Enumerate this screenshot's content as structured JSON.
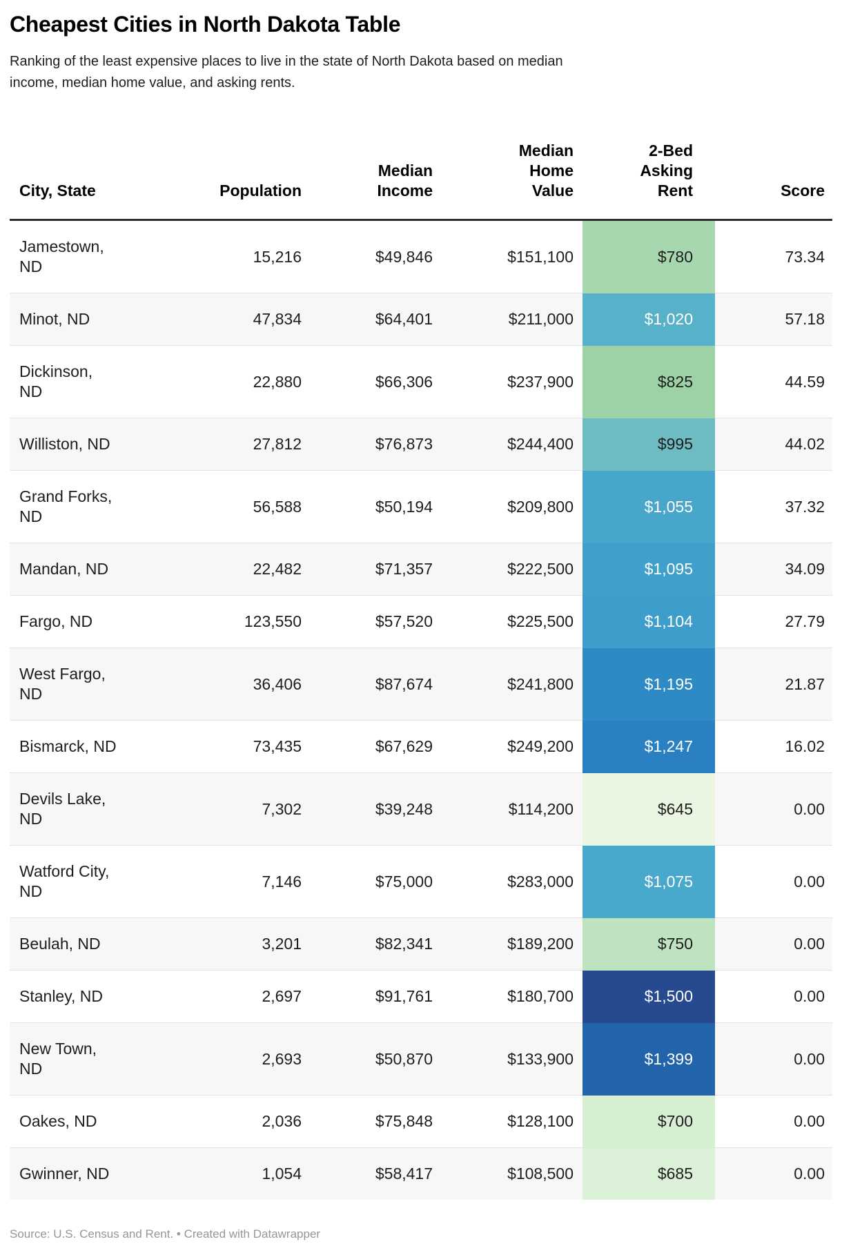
{
  "header": {
    "title": "Cheapest Cities in North Dakota Table",
    "subtitle": "Ranking of the least expensive places to live in the state of North Dakota based on median\nincome, median home value, and asking rents."
  },
  "footer": {
    "text": "Source: U.S. Census and Rent. • Created with Datawrapper"
  },
  "chart_data": {
    "type": "table",
    "title": "Cheapest Cities in North Dakota Table",
    "legend_position": "none",
    "grid": "row-stripes",
    "rent_color_scale": {
      "low_green": "#eaf5e2",
      "mid_teal": "#57b1c9",
      "high_navy": "#27498f"
    },
    "columns": [
      {
        "key": "city",
        "label": "City, State",
        "align": "left"
      },
      {
        "key": "population",
        "label": "Population",
        "align": "right"
      },
      {
        "key": "income",
        "label": "Median\nIncome",
        "align": "right"
      },
      {
        "key": "home",
        "label": "Median\nHome\nValue",
        "align": "right"
      },
      {
        "key": "rent",
        "label": "2-Bed\nAsking\nRent",
        "align": "right"
      },
      {
        "key": "score",
        "label": "Score",
        "align": "right"
      }
    ],
    "rows": [
      {
        "city": "Jamestown, ND",
        "city_display": "Jamestown,\nND",
        "population": 15216,
        "population_display": "15,216",
        "median_income": 49846,
        "income_display": "$49,846",
        "median_home_value": 151100,
        "home_display": "$151,100",
        "rent": 780,
        "rent_display": "$780",
        "score": 73.34,
        "score_display": "73.34",
        "rent_bg": "#a7d7af",
        "rent_text": "#1d1d1d"
      },
      {
        "city": "Minot, ND",
        "city_display": "Minot, ND",
        "population": 47834,
        "population_display": "47,834",
        "median_income": 64401,
        "income_display": "$64,401",
        "median_home_value": 211000,
        "home_display": "$211,000",
        "rent": 1020,
        "rent_display": "$1,020",
        "score": 57.18,
        "score_display": "57.18",
        "rent_bg": "#57b1c9",
        "rent_text": "#ffffff"
      },
      {
        "city": "Dickinson, ND",
        "city_display": "Dickinson,\nND",
        "population": 22880,
        "population_display": "22,880",
        "median_income": 66306,
        "income_display": "$66,306",
        "median_home_value": 237900,
        "home_display": "$237,900",
        "rent": 825,
        "rent_display": "$825",
        "score": 44.59,
        "score_display": "44.59",
        "rent_bg": "#9cd2a6",
        "rent_text": "#1d1d1d"
      },
      {
        "city": "Williston, ND",
        "city_display": "Williston, ND",
        "population": 27812,
        "population_display": "27,812",
        "median_income": 76873,
        "income_display": "$76,873",
        "median_home_value": 244400,
        "home_display": "$244,400",
        "rent": 995,
        "rent_display": "$995",
        "score": 44.02,
        "score_display": "44.02",
        "rent_bg": "#6cbcc2",
        "rent_text": "#1d1d1d"
      },
      {
        "city": "Grand Forks, ND",
        "city_display": "Grand Forks,\nND",
        "population": 56588,
        "population_display": "56,588",
        "median_income": 50194,
        "income_display": "$50,194",
        "median_home_value": 209800,
        "home_display": "$209,800",
        "rent": 1055,
        "rent_display": "$1,055",
        "score": 37.32,
        "score_display": "37.32",
        "rent_bg": "#49a6cb",
        "rent_text": "#ffffff"
      },
      {
        "city": "Mandan, ND",
        "city_display": "Mandan, ND",
        "population": 22482,
        "population_display": "22,482",
        "median_income": 71357,
        "income_display": "$71,357",
        "median_home_value": 222500,
        "home_display": "$222,500",
        "rent": 1095,
        "rent_display": "$1,095",
        "score": 34.09,
        "score_display": "34.09",
        "rent_bg": "#40a0cc",
        "rent_text": "#ffffff"
      },
      {
        "city": "Fargo, ND",
        "city_display": "Fargo, ND",
        "population": 123550,
        "population_display": "123,550",
        "median_income": 57520,
        "income_display": "$57,520",
        "median_home_value": 225500,
        "home_display": "$225,500",
        "rent": 1104,
        "rent_display": "$1,104",
        "score": 27.79,
        "score_display": "27.79",
        "rent_bg": "#3e9ecb",
        "rent_text": "#ffffff"
      },
      {
        "city": "West Fargo, ND",
        "city_display": "West Fargo,\nND",
        "population": 36406,
        "population_display": "36,406",
        "median_income": 87674,
        "income_display": "$87,674",
        "median_home_value": 241800,
        "home_display": "$241,800",
        "rent": 1195,
        "rent_display": "$1,195",
        "score": 21.87,
        "score_display": "21.87",
        "rent_bg": "#2e8ac4",
        "rent_text": "#ffffff"
      },
      {
        "city": "Bismarck, ND",
        "city_display": "Bismarck, ND",
        "population": 73435,
        "population_display": "73,435",
        "median_income": 67629,
        "income_display": "$67,629",
        "median_home_value": 249200,
        "home_display": "$249,200",
        "rent": 1247,
        "rent_display": "$1,247",
        "score": 16.02,
        "score_display": "16.02",
        "rent_bg": "#2a80c0",
        "rent_text": "#ffffff"
      },
      {
        "city": "Devils Lake, ND",
        "city_display": "Devils Lake,\nND",
        "population": 7302,
        "population_display": "7,302",
        "median_income": 39248,
        "income_display": "$39,248",
        "median_home_value": 114200,
        "home_display": "$114,200",
        "rent": 645,
        "rent_display": "$645",
        "score": 0.0,
        "score_display": "0.00",
        "rent_bg": "#eaf5e2",
        "rent_text": "#1d1d1d"
      },
      {
        "city": "Watford City, ND",
        "city_display": "Watford City,\nND",
        "population": 7146,
        "population_display": "7,146",
        "median_income": 75000,
        "income_display": "$75,000",
        "median_home_value": 283000,
        "home_display": "$283,000",
        "rent": 1075,
        "rent_display": "$1,075",
        "score": 0.0,
        "score_display": "0.00",
        "rent_bg": "#48a9cc",
        "rent_text": "#ffffff"
      },
      {
        "city": "Beulah, ND",
        "city_display": "Beulah, ND",
        "population": 3201,
        "population_display": "3,201",
        "median_income": 82341,
        "income_display": "$82,341",
        "median_home_value": 189200,
        "home_display": "$189,200",
        "rent": 750,
        "rent_display": "$750",
        "score": 0.0,
        "score_display": "0.00",
        "rent_bg": "#bfe2c1",
        "rent_text": "#1d1d1d"
      },
      {
        "city": "Stanley, ND",
        "city_display": "Stanley, ND",
        "population": 2697,
        "population_display": "2,697",
        "median_income": 91761,
        "income_display": "$91,761",
        "median_home_value": 180700,
        "home_display": "$180,700",
        "rent": 1500,
        "rent_display": "$1,500",
        "score": 0.0,
        "score_display": "0.00",
        "rent_bg": "#27498f",
        "rent_text": "#ffffff"
      },
      {
        "city": "New Town, ND",
        "city_display": "New Town,\nND",
        "population": 2693,
        "population_display": "2,693",
        "median_income": 50870,
        "income_display": "$50,870",
        "median_home_value": 133900,
        "home_display": "$133,900",
        "rent": 1399,
        "rent_display": "$1,399",
        "score": 0.0,
        "score_display": "0.00",
        "rent_bg": "#2264aa",
        "rent_text": "#ffffff"
      },
      {
        "city": "Oakes, ND",
        "city_display": "Oakes, ND",
        "population": 2036,
        "population_display": "2,036",
        "median_income": 75848,
        "income_display": "$75,848",
        "median_home_value": 128100,
        "home_display": "$128,100",
        "rent": 700,
        "rent_display": "$700",
        "score": 0.0,
        "score_display": "0.00",
        "rent_bg": "#d6eed2",
        "rent_text": "#1d1d1d"
      },
      {
        "city": "Gwinner, ND",
        "city_display": "Gwinner, ND",
        "population": 1054,
        "population_display": "1,054",
        "median_income": 58417,
        "income_display": "$58,417",
        "median_home_value": 108500,
        "home_display": "$108,500",
        "rent": 685,
        "rent_display": "$685",
        "score": 0.0,
        "score_display": "0.00",
        "rent_bg": "#daf0d7",
        "rent_text": "#1d1d1d"
      }
    ]
  }
}
